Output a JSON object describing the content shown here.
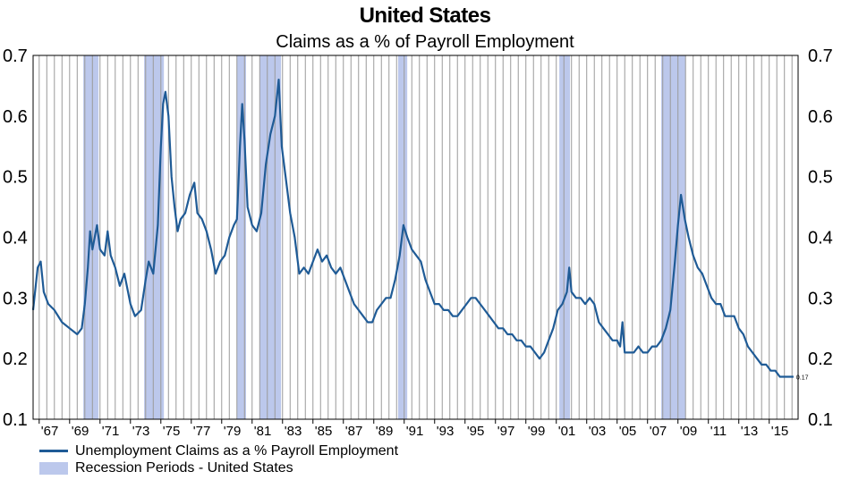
{
  "chart_data": {
    "type": "line",
    "title": "United States",
    "subtitle": "Claims as a % of Payroll Employment",
    "ylim": [
      0.1,
      0.7
    ],
    "yticks": [
      "0.1",
      "0.2",
      "0.3",
      "0.4",
      "0.5",
      "0.6",
      "0.7"
    ],
    "xlim": [
      1966.6,
      2016.9
    ],
    "xtick_labels": [
      "67",
      "69",
      "71",
      "73",
      "75",
      "77",
      "79",
      "81",
      "83",
      "85",
      "87",
      "89",
      "91",
      "93",
      "95",
      "97",
      "99",
      "01",
      "03",
      "05",
      "07",
      "09",
      "11",
      "13",
      "15"
    ],
    "xtick_years": [
      1967,
      1969,
      1971,
      1973,
      1975,
      1977,
      1979,
      1981,
      1983,
      1985,
      1987,
      1989,
      1991,
      1993,
      1995,
      1997,
      1999,
      2001,
      2003,
      2005,
      2007,
      2009,
      2011,
      2013,
      2015
    ],
    "last_value_label": "0.17",
    "recessions": [
      {
        "start": 1969.9,
        "end": 1970.9
      },
      {
        "start": 1973.9,
        "end": 1975.2
      },
      {
        "start": 1980.0,
        "end": 1980.6
      },
      {
        "start": 1981.5,
        "end": 1982.9
      },
      {
        "start": 1990.6,
        "end": 1991.2
      },
      {
        "start": 2001.2,
        "end": 2001.9
      },
      {
        "start": 2007.9,
        "end": 2009.5
      }
    ],
    "series": [
      {
        "name": "Unemployment Claims as a % Payroll Employment",
        "color": "#1f5b96",
        "points": [
          [
            1966.6,
            0.28
          ],
          [
            1966.9,
            0.35
          ],
          [
            1967.1,
            0.36
          ],
          [
            1967.3,
            0.31
          ],
          [
            1967.6,
            0.29
          ],
          [
            1968.0,
            0.28
          ],
          [
            1968.5,
            0.26
          ],
          [
            1969.0,
            0.25
          ],
          [
            1969.5,
            0.24
          ],
          [
            1969.8,
            0.25
          ],
          [
            1970.0,
            0.29
          ],
          [
            1970.2,
            0.35
          ],
          [
            1970.35,
            0.41
          ],
          [
            1970.5,
            0.38
          ],
          [
            1970.8,
            0.42
          ],
          [
            1971.0,
            0.38
          ],
          [
            1971.3,
            0.37
          ],
          [
            1971.5,
            0.41
          ],
          [
            1971.7,
            0.37
          ],
          [
            1972.0,
            0.35
          ],
          [
            1972.3,
            0.32
          ],
          [
            1972.6,
            0.34
          ],
          [
            1973.0,
            0.29
          ],
          [
            1973.3,
            0.27
          ],
          [
            1973.7,
            0.28
          ],
          [
            1974.0,
            0.33
          ],
          [
            1974.2,
            0.36
          ],
          [
            1974.5,
            0.34
          ],
          [
            1974.8,
            0.42
          ],
          [
            1975.0,
            0.55
          ],
          [
            1975.15,
            0.62
          ],
          [
            1975.3,
            0.64
          ],
          [
            1975.5,
            0.6
          ],
          [
            1975.7,
            0.5
          ],
          [
            1975.9,
            0.45
          ],
          [
            1976.1,
            0.41
          ],
          [
            1976.3,
            0.43
          ],
          [
            1976.6,
            0.44
          ],
          [
            1976.9,
            0.47
          ],
          [
            1977.2,
            0.49
          ],
          [
            1977.4,
            0.44
          ],
          [
            1977.7,
            0.43
          ],
          [
            1978.0,
            0.41
          ],
          [
            1978.3,
            0.38
          ],
          [
            1978.6,
            0.34
          ],
          [
            1978.9,
            0.36
          ],
          [
            1979.2,
            0.37
          ],
          [
            1979.5,
            0.4
          ],
          [
            1979.8,
            0.42
          ],
          [
            1980.0,
            0.43
          ],
          [
            1980.2,
            0.55
          ],
          [
            1980.35,
            0.62
          ],
          [
            1980.5,
            0.56
          ],
          [
            1980.7,
            0.45
          ],
          [
            1981.0,
            0.42
          ],
          [
            1981.3,
            0.41
          ],
          [
            1981.6,
            0.44
          ],
          [
            1981.9,
            0.52
          ],
          [
            1982.2,
            0.57
          ],
          [
            1982.5,
            0.6
          ],
          [
            1982.75,
            0.66
          ],
          [
            1982.95,
            0.55
          ],
          [
            1983.2,
            0.5
          ],
          [
            1983.5,
            0.44
          ],
          [
            1983.8,
            0.4
          ],
          [
            1984.1,
            0.34
          ],
          [
            1984.4,
            0.35
          ],
          [
            1984.7,
            0.34
          ],
          [
            1985.0,
            0.36
          ],
          [
            1985.3,
            0.38
          ],
          [
            1985.6,
            0.36
          ],
          [
            1985.9,
            0.37
          ],
          [
            1986.2,
            0.35
          ],
          [
            1986.5,
            0.34
          ],
          [
            1986.8,
            0.35
          ],
          [
            1987.1,
            0.33
          ],
          [
            1987.4,
            0.31
          ],
          [
            1987.7,
            0.29
          ],
          [
            1988.0,
            0.28
          ],
          [
            1988.3,
            0.27
          ],
          [
            1988.6,
            0.26
          ],
          [
            1988.9,
            0.26
          ],
          [
            1989.2,
            0.28
          ],
          [
            1989.5,
            0.29
          ],
          [
            1989.8,
            0.3
          ],
          [
            1990.1,
            0.3
          ],
          [
            1990.4,
            0.33
          ],
          [
            1990.7,
            0.37
          ],
          [
            1990.95,
            0.42
          ],
          [
            1991.2,
            0.4
          ],
          [
            1991.5,
            0.38
          ],
          [
            1991.8,
            0.37
          ],
          [
            1992.1,
            0.36
          ],
          [
            1992.4,
            0.33
          ],
          [
            1992.7,
            0.31
          ],
          [
            1993.0,
            0.29
          ],
          [
            1993.3,
            0.29
          ],
          [
            1993.6,
            0.28
          ],
          [
            1993.9,
            0.28
          ],
          [
            1994.2,
            0.27
          ],
          [
            1994.5,
            0.27
          ],
          [
            1994.8,
            0.28
          ],
          [
            1995.1,
            0.29
          ],
          [
            1995.4,
            0.3
          ],
          [
            1995.7,
            0.3
          ],
          [
            1996.0,
            0.29
          ],
          [
            1996.3,
            0.28
          ],
          [
            1996.6,
            0.27
          ],
          [
            1996.9,
            0.26
          ],
          [
            1997.2,
            0.25
          ],
          [
            1997.5,
            0.25
          ],
          [
            1997.8,
            0.24
          ],
          [
            1998.1,
            0.24
          ],
          [
            1998.4,
            0.23
          ],
          [
            1998.7,
            0.23
          ],
          [
            1999.0,
            0.22
          ],
          [
            1999.3,
            0.22
          ],
          [
            1999.6,
            0.21
          ],
          [
            1999.9,
            0.2
          ],
          [
            2000.2,
            0.21
          ],
          [
            2000.5,
            0.23
          ],
          [
            2000.8,
            0.25
          ],
          [
            2001.1,
            0.28
          ],
          [
            2001.4,
            0.29
          ],
          [
            2001.7,
            0.31
          ],
          [
            2001.85,
            0.35
          ],
          [
            2002.0,
            0.31
          ],
          [
            2002.3,
            0.3
          ],
          [
            2002.6,
            0.3
          ],
          [
            2002.9,
            0.29
          ],
          [
            2003.2,
            0.3
          ],
          [
            2003.5,
            0.29
          ],
          [
            2003.8,
            0.26
          ],
          [
            2004.1,
            0.25
          ],
          [
            2004.4,
            0.24
          ],
          [
            2004.7,
            0.23
          ],
          [
            2005.0,
            0.23
          ],
          [
            2005.2,
            0.22
          ],
          [
            2005.35,
            0.26
          ],
          [
            2005.5,
            0.21
          ],
          [
            2005.8,
            0.21
          ],
          [
            2006.1,
            0.21
          ],
          [
            2006.4,
            0.22
          ],
          [
            2006.7,
            0.21
          ],
          [
            2007.0,
            0.21
          ],
          [
            2007.3,
            0.22
          ],
          [
            2007.6,
            0.22
          ],
          [
            2007.9,
            0.23
          ],
          [
            2008.2,
            0.25
          ],
          [
            2008.5,
            0.28
          ],
          [
            2008.8,
            0.36
          ],
          [
            2009.0,
            0.42
          ],
          [
            2009.2,
            0.47
          ],
          [
            2009.45,
            0.43
          ],
          [
            2009.7,
            0.4
          ],
          [
            2010.0,
            0.37
          ],
          [
            2010.3,
            0.35
          ],
          [
            2010.6,
            0.34
          ],
          [
            2010.9,
            0.32
          ],
          [
            2011.2,
            0.3
          ],
          [
            2011.5,
            0.29
          ],
          [
            2011.8,
            0.29
          ],
          [
            2012.1,
            0.27
          ],
          [
            2012.4,
            0.27
          ],
          [
            2012.7,
            0.27
          ],
          [
            2013.0,
            0.25
          ],
          [
            2013.3,
            0.24
          ],
          [
            2013.6,
            0.22
          ],
          [
            2013.9,
            0.21
          ],
          [
            2014.2,
            0.2
          ],
          [
            2014.5,
            0.19
          ],
          [
            2014.8,
            0.19
          ],
          [
            2015.1,
            0.18
          ],
          [
            2015.4,
            0.18
          ],
          [
            2015.7,
            0.17
          ],
          [
            2016.0,
            0.17
          ],
          [
            2016.3,
            0.17
          ],
          [
            2016.6,
            0.17
          ]
        ]
      }
    ]
  },
  "legend": {
    "series_label": "Unemployment Claims as a % Payroll Employment",
    "recession_label": "Recession Periods - United States"
  }
}
